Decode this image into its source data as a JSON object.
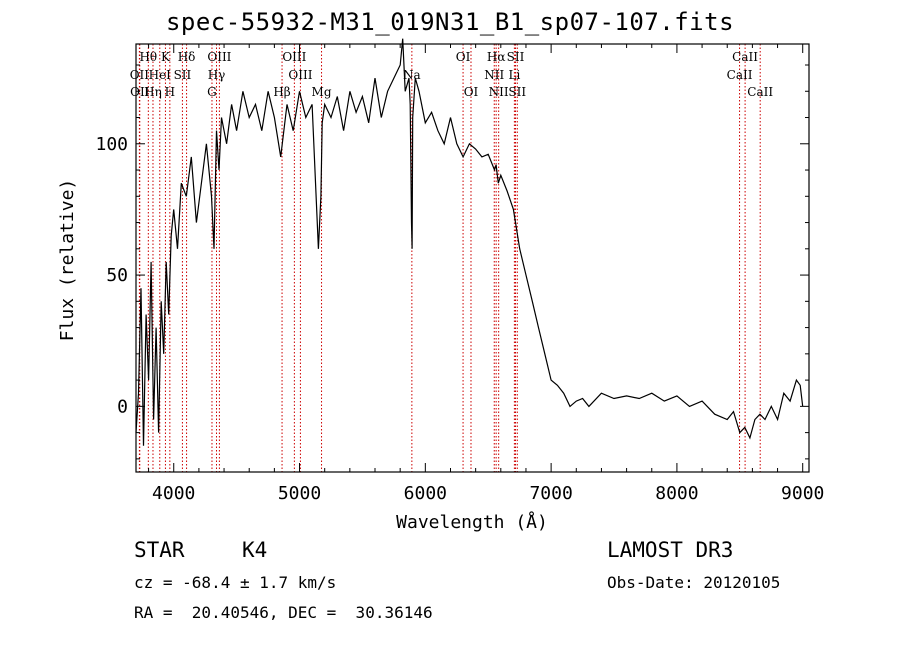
{
  "chart_data": {
    "type": "line",
    "title": "spec-55932-M31_019N31_B1_sp07-107.fits",
    "xlabel": "Wavelength (Å)",
    "ylabel": "Flux (relative)",
    "xlim": [
      3700,
      9050
    ],
    "ylim": [
      -25,
      138
    ],
    "xticks": [
      4000,
      5000,
      6000,
      7000,
      8000,
      9000
    ],
    "yticks": [
      0,
      50,
      100
    ],
    "grid": false,
    "series": [
      {
        "name": "spectrum",
        "x": [
          3700,
          3720,
          3740,
          3760,
          3780,
          3800,
          3820,
          3840,
          3860,
          3880,
          3900,
          3920,
          3940,
          3960,
          3980,
          4000,
          4030,
          4060,
          4100,
          4140,
          4180,
          4220,
          4260,
          4300,
          4320,
          4340,
          4360,
          4380,
          4420,
          4460,
          4500,
          4550,
          4600,
          4650,
          4700,
          4750,
          4800,
          4850,
          4900,
          4950,
          5000,
          5050,
          5100,
          5150,
          5170,
          5180,
          5200,
          5250,
          5300,
          5350,
          5400,
          5450,
          5500,
          5550,
          5600,
          5650,
          5700,
          5750,
          5800,
          5820,
          5840,
          5870,
          5880,
          5890,
          5895,
          5900,
          5920,
          5950,
          6000,
          6050,
          6100,
          6150,
          6200,
          6250,
          6300,
          6350,
          6400,
          6450,
          6500,
          6550,
          6563,
          6580,
          6600,
          6650,
          6700,
          6750,
          6800,
          6850,
          6900,
          6950,
          7000,
          7050,
          7100,
          7150,
          7200,
          7250,
          7300,
          7400,
          7500,
          7600,
          7700,
          7800,
          7900,
          8000,
          8100,
          8200,
          8300,
          8400,
          8450,
          8500,
          8540,
          8580,
          8620,
          8660,
          8700,
          8750,
          8800,
          8850,
          8900,
          8950,
          8980,
          9000
        ],
        "values": [
          -10,
          5,
          45,
          -15,
          35,
          10,
          55,
          -5,
          30,
          -10,
          40,
          20,
          55,
          35,
          65,
          75,
          60,
          85,
          80,
          95,
          70,
          85,
          100,
          80,
          60,
          105,
          90,
          110,
          100,
          115,
          105,
          120,
          110,
          115,
          105,
          120,
          110,
          95,
          115,
          105,
          120,
          110,
          115,
          60,
          80,
          108,
          115,
          110,
          118,
          105,
          120,
          112,
          118,
          108,
          125,
          110,
          120,
          125,
          130,
          140,
          120,
          125,
          115,
          70,
          60,
          110,
          125,
          120,
          108,
          112,
          105,
          100,
          110,
          100,
          95,
          100,
          98,
          95,
          96,
          90,
          92,
          85,
          88,
          82,
          75,
          60,
          50,
          40,
          30,
          20,
          10,
          8,
          5,
          0,
          2,
          3,
          0,
          5,
          3,
          4,
          3,
          5,
          2,
          4,
          0,
          2,
          -3,
          -5,
          -2,
          -10,
          -8,
          -12,
          -5,
          -3,
          -5,
          0,
          -5,
          5,
          2,
          10,
          8,
          0
        ]
      }
    ],
    "line_markers": [
      {
        "label": "Hθ",
        "wavelength": 3798,
        "row": 0
      },
      {
        "label": "OII",
        "wavelength": 3727,
        "row": 1
      },
      {
        "label": "OII",
        "wavelength": 3730,
        "row": 2
      },
      {
        "label": "K",
        "wavelength": 3934,
        "row": 0
      },
      {
        "label": "HeI",
        "wavelength": 3889,
        "row": 1
      },
      {
        "label": "Hη",
        "wavelength": 3835,
        "row": 2
      },
      {
        "label": "Hδ",
        "wavelength": 4102,
        "row": 0
      },
      {
        "label": "SII",
        "wavelength": 4069,
        "row": 1
      },
      {
        "label": "H",
        "wavelength": 3969,
        "row": 2
      },
      {
        "label": "OIII",
        "wavelength": 4363,
        "row": 0
      },
      {
        "label": "Hγ",
        "wavelength": 4340,
        "row": 1
      },
      {
        "label": "G",
        "wavelength": 4304,
        "row": 2
      },
      {
        "label": "OIII",
        "wavelength": 4959,
        "row": 0
      },
      {
        "label": "OIII",
        "wavelength": 5007,
        "row": 1
      },
      {
        "label": "Hβ",
        "wavelength": 4861,
        "row": 2
      },
      {
        "label": "Mg",
        "wavelength": 5175,
        "row": 2
      },
      {
        "label": "Na",
        "wavelength": 5893,
        "row": 1
      },
      {
        "label": "OI",
        "wavelength": 6300,
        "row": 0
      },
      {
        "label": "OI",
        "wavelength": 6363,
        "row": 2
      },
      {
        "label": "Hα",
        "wavelength": 6563,
        "row": 0
      },
      {
        "label": "NII",
        "wavelength": 6548,
        "row": 1
      },
      {
        "label": "NII",
        "wavelength": 6583,
        "row": 2
      },
      {
        "label": "SII",
        "wavelength": 6717,
        "row": 0
      },
      {
        "label": "Li",
        "wavelength": 6708,
        "row": 1
      },
      {
        "label": "SII",
        "wavelength": 6731,
        "row": 2
      },
      {
        "label": "CaII",
        "wavelength": 8542,
        "row": 0
      },
      {
        "label": "CaII",
        "wavelength": 8498,
        "row": 1
      },
      {
        "label": "CaII",
        "wavelength": 8662,
        "row": 2
      }
    ]
  },
  "info": {
    "class": "STAR",
    "subclass": "K4",
    "survey": "LAMOST DR3",
    "cz": "cz = -68.4 ± 1.7 km/s",
    "obs_date": "Obs-Date: 20120105",
    "coords": "RA =  20.40546, DEC =  30.36146"
  },
  "colors": {
    "line_marker": "#cc0000",
    "spectrum": "#000000"
  }
}
